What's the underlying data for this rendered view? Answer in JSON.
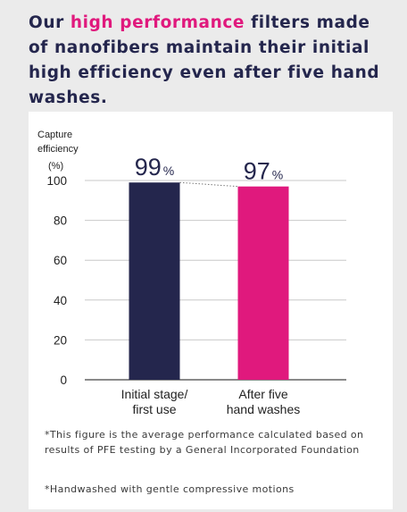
{
  "headline": {
    "part1": "Our ",
    "highlight": "high performance",
    "part2": " filters made of nanofibers maintain their initial high efficiency even after five hand washes."
  },
  "colors": {
    "navy": "#24264d",
    "pink": "#e0197d",
    "background": "#ebebeb",
    "card": "#ffffff"
  },
  "chart_data": {
    "type": "bar",
    "ylabel_line1": "Capture",
    "ylabel_line2": "efficiency",
    "yunit": "(%)",
    "ylim": [
      0,
      100
    ],
    "yticks": [
      0,
      20,
      40,
      60,
      80,
      100
    ],
    "grid": true,
    "categories": [
      [
        "Initial stage/",
        "first use"
      ],
      [
        "After five",
        "hand washes"
      ]
    ],
    "values": [
      99,
      97
    ],
    "value_labels": [
      "99",
      "97"
    ],
    "value_unit": "%",
    "bar_colors": [
      "#24264d",
      "#e0197d"
    ],
    "connector_line": "dotted"
  },
  "footnotes": [
    "*This figure is the average performance calculated based on results of PFE testing by a General Incorporated Foundation",
    "*Handwashed with gentle compressive motions"
  ]
}
